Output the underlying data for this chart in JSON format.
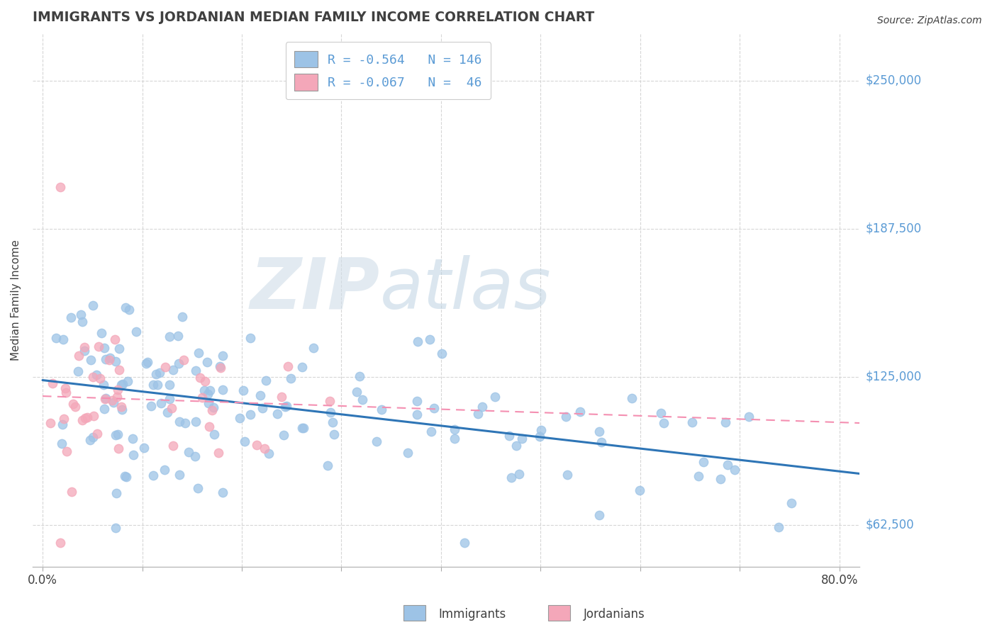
{
  "title": "IMMIGRANTS VS JORDANIAN MEDIAN FAMILY INCOME CORRELATION CHART",
  "source": "Source: ZipAtlas.com",
  "ylabel": "Median Family Income",
  "xlim": [
    -0.01,
    0.82
  ],
  "ylim": [
    45000,
    270000
  ],
  "yticks": [
    62500,
    125000,
    187500,
    250000
  ],
  "ytick_labels": [
    "$62,500",
    "$125,000",
    "$187,500",
    "$250,000"
  ],
  "xtick_positions": [
    0.0,
    0.1,
    0.2,
    0.3,
    0.4,
    0.5,
    0.6,
    0.7,
    0.8
  ],
  "xtick_labels": [
    "0.0%",
    "",
    "",
    "",
    "",
    "",
    "",
    "",
    "80.0%"
  ],
  "immigrants_color": "#9dc3e6",
  "jordanians_color": "#f4a7b9",
  "trend_immigrants_color": "#2e75b6",
  "trend_jordanians_color": "#f48fb1",
  "background_color": "#ffffff",
  "grid_color": "#cccccc",
  "watermark_zip": "ZIP",
  "watermark_atlas": "atlas",
  "watermark_color_zip": "#c5d8e8",
  "watermark_color_atlas": "#b0c8d8",
  "title_color": "#404040",
  "source_color": "#404040",
  "ylabel_color": "#404040",
  "tick_color": "#404040",
  "ytick_label_color": "#5b9bd5",
  "legend_text_color": "#5b9bd5",
  "legend_label1": "R = -0.564   N = 146",
  "legend_label2": "R = -0.067   N =  46",
  "bottom_legend_imm": "Immigrants",
  "bottom_legend_jor": "Jordanians",
  "bottom_legend_color": "#5b9bd5",
  "bottom_legend_jor_color": "#e07090"
}
